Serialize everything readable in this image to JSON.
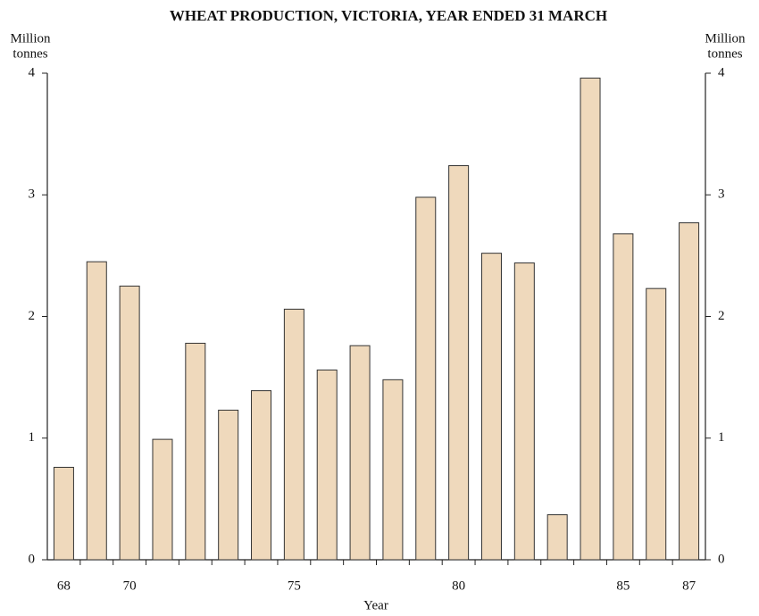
{
  "chart_data": {
    "type": "bar",
    "title": "WHEAT PRODUCTION, VICTORIA, YEAR ENDED 31 MARCH",
    "ylabel": [
      "Million",
      "tonnes"
    ],
    "y2label": [
      "Million",
      "tonnes"
    ],
    "xlabel": "Year",
    "categories": [
      "68",
      null,
      "70",
      null,
      null,
      null,
      null,
      "75",
      null,
      null,
      null,
      null,
      "80",
      null,
      null,
      null,
      null,
      "85",
      null,
      "87"
    ],
    "values": [
      0.76,
      2.45,
      2.25,
      0.99,
      1.78,
      1.23,
      1.39,
      2.06,
      1.56,
      1.76,
      1.48,
      2.98,
      3.24,
      2.52,
      2.44,
      0.37,
      3.96,
      2.68,
      2.23,
      2.77
    ],
    "color": "#efd9bc",
    "ylim": [
      0,
      4
    ],
    "yticks": [
      0,
      1,
      2,
      3,
      4
    ],
    "y2lim": [
      0,
      4
    ],
    "y2ticks": [
      0,
      1,
      2,
      3,
      4
    ]
  }
}
